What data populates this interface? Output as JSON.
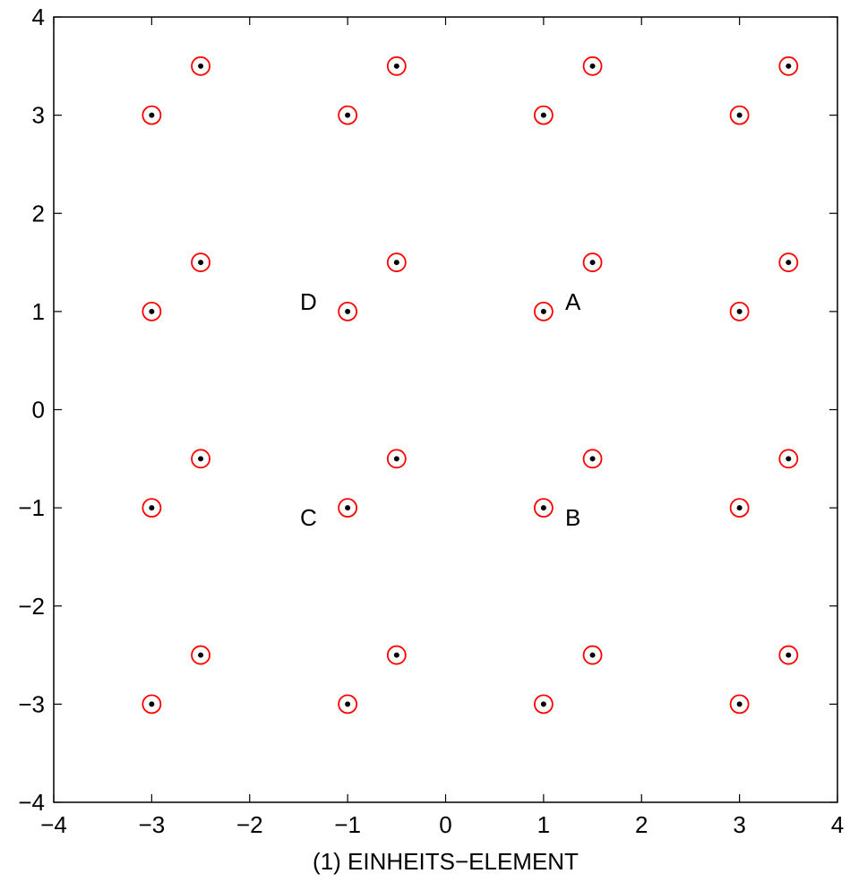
{
  "chart_data": {
    "type": "scatter",
    "title": "",
    "xlabel": "(1) EINHEITS−ELEMENT",
    "ylabel": "",
    "xlim": [
      -4,
      4
    ],
    "ylim": [
      -4,
      4
    ],
    "grid": false,
    "x_ticks": [
      -4,
      -3,
      -2,
      -1,
      0,
      1,
      2,
      3,
      4
    ],
    "x_tick_labels": [
      "−4",
      "−3",
      "−2",
      "−1",
      "0",
      "1",
      "2",
      "3",
      "4"
    ],
    "y_ticks": [
      -4,
      -3,
      -2,
      -1,
      0,
      1,
      2,
      3,
      4
    ],
    "y_tick_labels": [
      "−4",
      "−3",
      "−2",
      "−1",
      "0",
      "1",
      "2",
      "3",
      "4"
    ],
    "marker_styles": {
      "ring_color": "#ff0000",
      "dot_color": "#000000"
    },
    "series": [
      {
        "points": [
          [
            -3,
            3
          ],
          [
            -1,
            3
          ],
          [
            1,
            3
          ],
          [
            3,
            3
          ],
          [
            -3,
            1
          ],
          [
            -1,
            1
          ],
          [
            1,
            1
          ],
          [
            3,
            1
          ],
          [
            -3,
            -1
          ],
          [
            -1,
            -1
          ],
          [
            1,
            -1
          ],
          [
            3,
            -1
          ],
          [
            -3,
            -3
          ],
          [
            -1,
            -3
          ],
          [
            1,
            -3
          ],
          [
            3,
            -3
          ],
          [
            -2.5,
            3.5
          ],
          [
            -0.5,
            3.5
          ],
          [
            1.5,
            3.5
          ],
          [
            3.5,
            3.5
          ],
          [
            -2.5,
            1.5
          ],
          [
            -0.5,
            1.5
          ],
          [
            1.5,
            1.5
          ],
          [
            3.5,
            1.5
          ],
          [
            -2.5,
            -0.5
          ],
          [
            -0.5,
            -0.5
          ],
          [
            1.5,
            -0.5
          ],
          [
            3.5,
            -0.5
          ],
          [
            -2.5,
            -2.5
          ],
          [
            -0.5,
            -2.5
          ],
          [
            1.5,
            -2.5
          ],
          [
            3.5,
            -2.5
          ]
        ]
      }
    ],
    "annotations": [
      {
        "text": "A",
        "x": 1.3,
        "y": 1.1
      },
      {
        "text": "B",
        "x": 1.3,
        "y": -1.1
      },
      {
        "text": "C",
        "x": -1.4,
        "y": -1.1
      },
      {
        "text": "D",
        "x": -1.4,
        "y": 1.1
      }
    ]
  }
}
